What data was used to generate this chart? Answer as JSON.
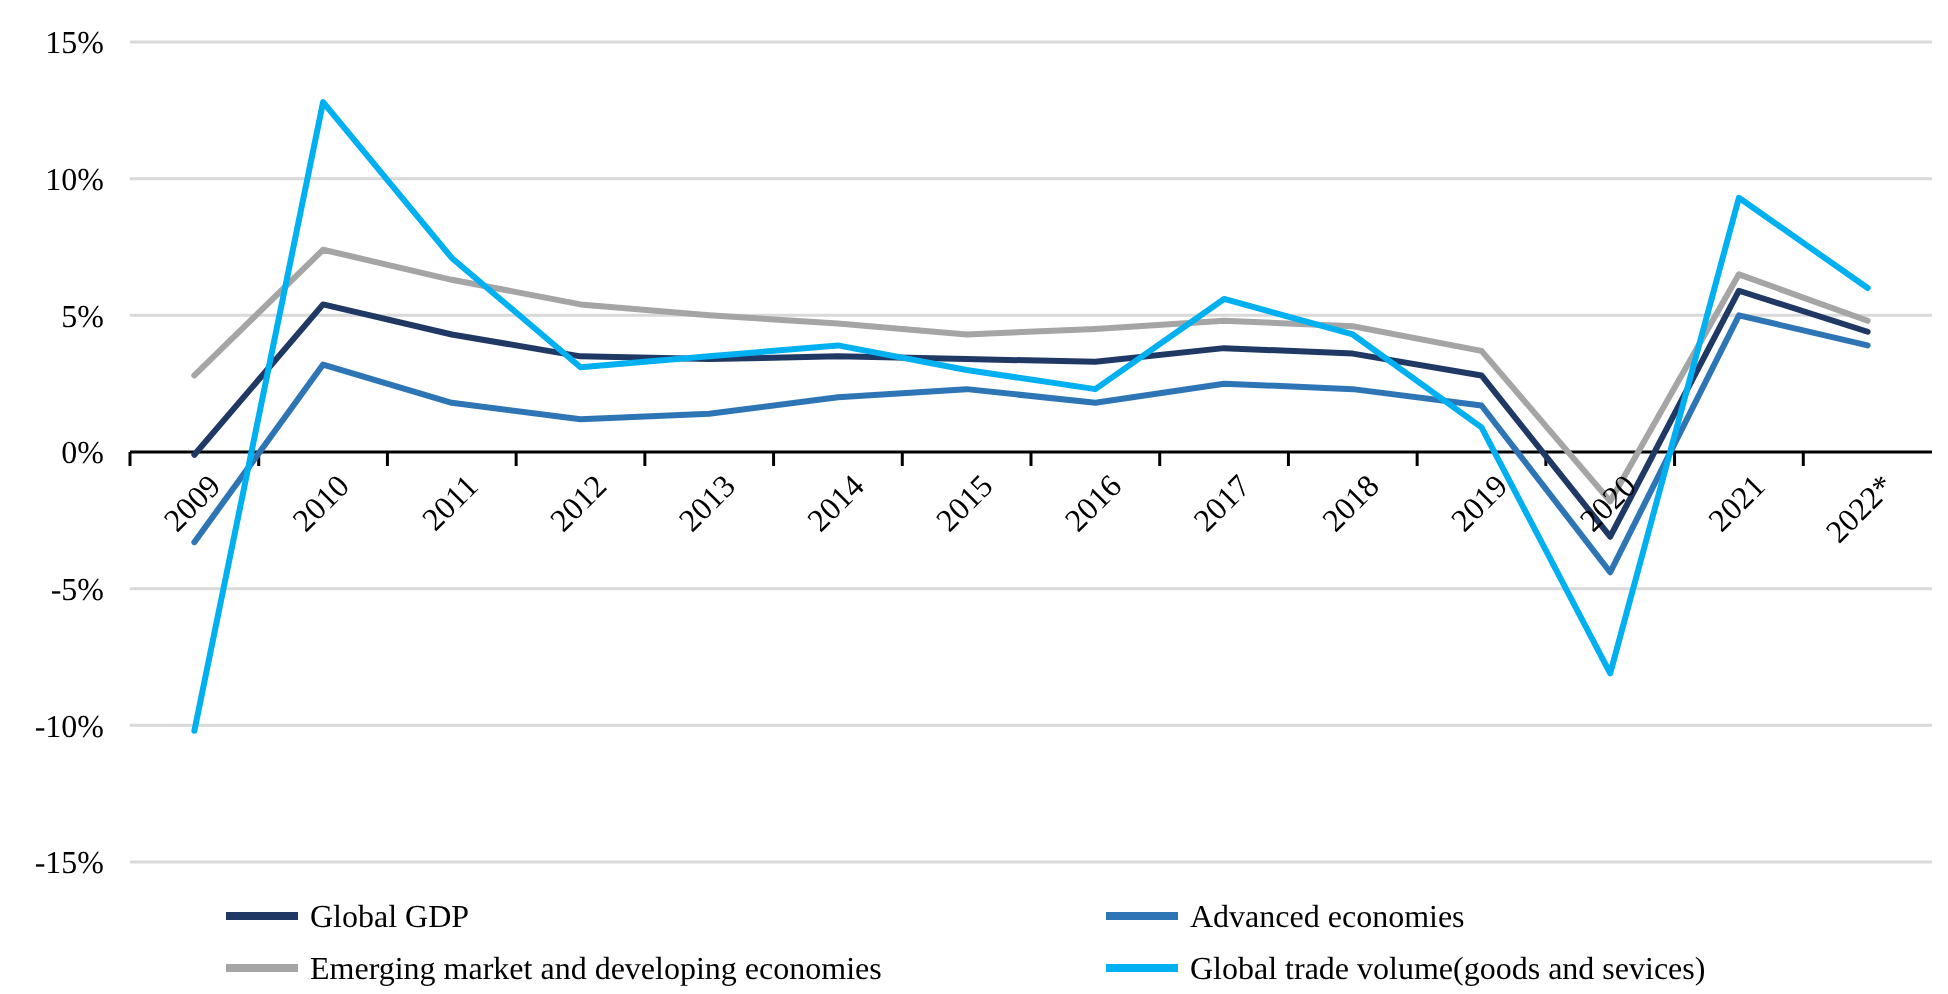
{
  "chart_data": {
    "type": "line",
    "categories": [
      "2009",
      "2010",
      "2011",
      "2012",
      "2013",
      "2014",
      "2015",
      "2016",
      "2017",
      "2018",
      "2019",
      "2020",
      "2021",
      "2022*"
    ],
    "series": [
      {
        "name": "Global GDP",
        "color": "#1f3864",
        "values": [
          -0.1,
          5.4,
          4.3,
          3.5,
          3.4,
          3.5,
          3.4,
          3.3,
          3.8,
          3.6,
          2.8,
          -3.1,
          5.9,
          4.4
        ]
      },
      {
        "name": "Advanced economies",
        "color": "#2e75b6",
        "values": [
          -3.3,
          3.2,
          1.8,
          1.2,
          1.4,
          2.0,
          2.3,
          1.8,
          2.5,
          2.3,
          1.7,
          -4.4,
          5.0,
          3.9
        ]
      },
      {
        "name": "Emerging market and developing economies",
        "color": "#a5a5a5",
        "values": [
          2.8,
          7.4,
          6.3,
          5.4,
          5.0,
          4.7,
          4.3,
          4.5,
          4.8,
          4.6,
          3.7,
          -1.8,
          6.5,
          4.8
        ]
      },
      {
        "name": "Global trade volume(goods and sevices)",
        "color": "#00b0f0",
        "values": [
          -10.2,
          12.8,
          7.1,
          3.1,
          3.5,
          3.9,
          3.0,
          2.3,
          5.6,
          4.3,
          0.9,
          -8.1,
          9.3,
          6.0
        ]
      }
    ],
    "ylim": [
      -15,
      15
    ],
    "yticks": [
      {
        "value": -15,
        "label": "-15%"
      },
      {
        "value": -10,
        "label": "-10%"
      },
      {
        "value": -5,
        "label": "-5%"
      },
      {
        "value": 0,
        "label": "0%"
      },
      {
        "value": 5,
        "label": "5%"
      },
      {
        "value": 10,
        "label": "10%"
      },
      {
        "value": 15,
        "label": "15%"
      }
    ],
    "grid": "y",
    "legend": "bottom",
    "marker": "none",
    "line_style": "solid"
  }
}
